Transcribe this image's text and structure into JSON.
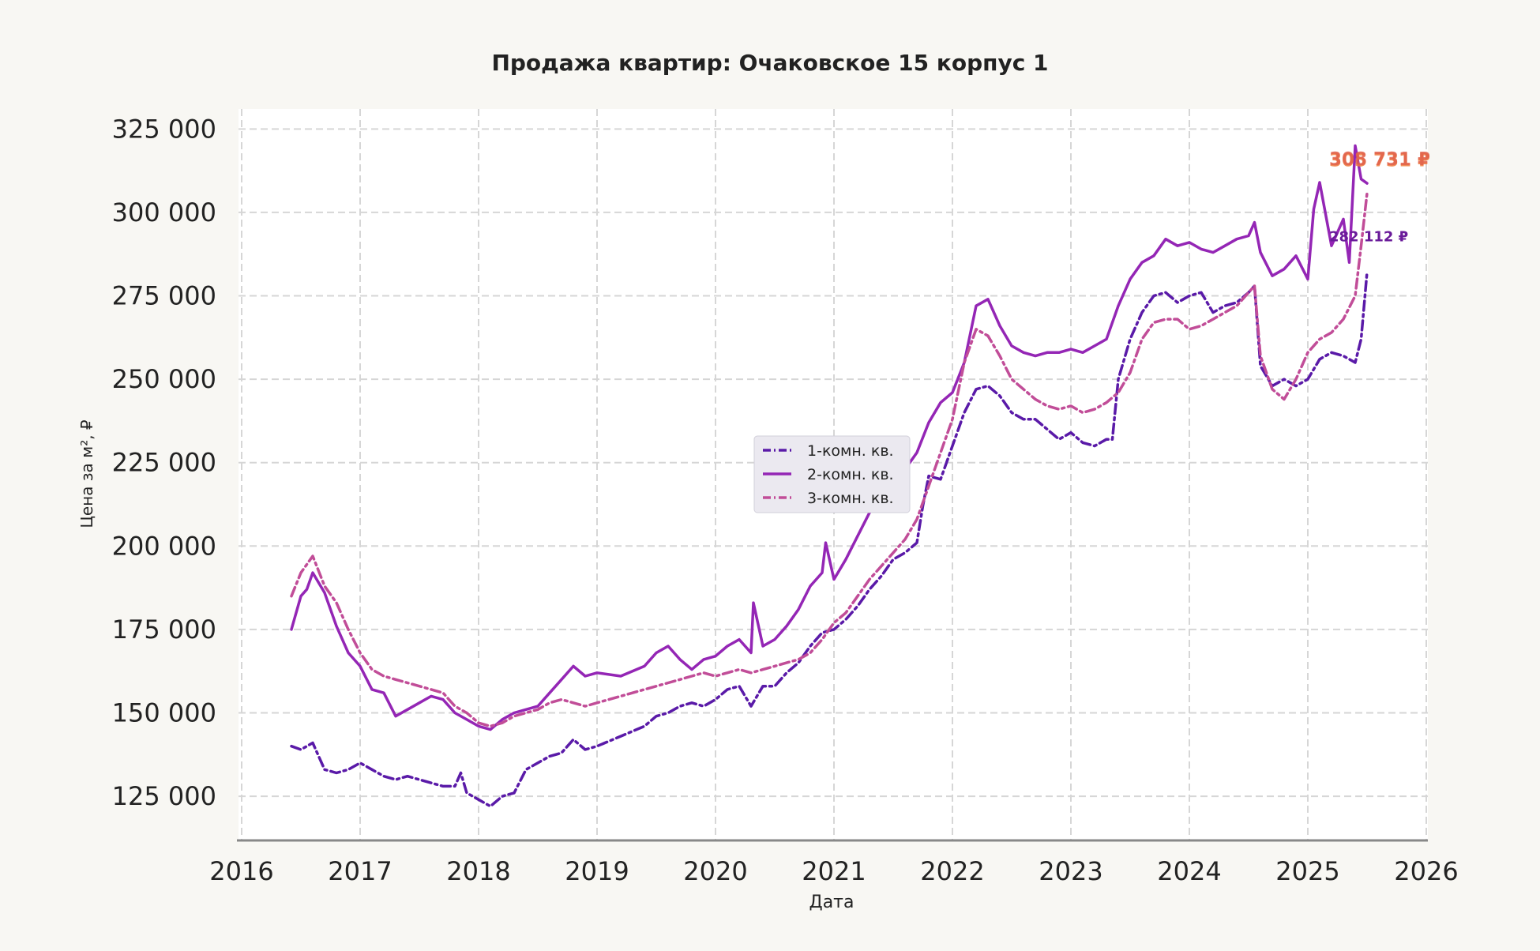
{
  "colors": {
    "background": "#f8f7f3",
    "plot_area": "#ffffff",
    "grid": "#d6d6d6",
    "axis": "#888888",
    "text": "#222222",
    "series_1": "#5a1aa8",
    "series_2": "#9426b5",
    "series_3": "#c14d98",
    "annotation_high": "#f07a3c"
  },
  "chart_data": {
    "type": "line",
    "title": "Продажа квартир: Очаковское 15 корпус 1",
    "xlabel": "Дата",
    "ylabel": "Цена за м², ₽",
    "xlim": [
      2016.0,
      2026.0
    ],
    "ylim": [
      112000,
      331000
    ],
    "x_ticks": [
      2016,
      2017,
      2018,
      2019,
      2020,
      2021,
      2022,
      2023,
      2024,
      2025,
      2026
    ],
    "y_ticks": [
      125000,
      150000,
      175000,
      200000,
      225000,
      250000,
      275000,
      300000,
      325000
    ],
    "x_tick_labels": [
      "2016",
      "2017",
      "2018",
      "2019",
      "2020",
      "2021",
      "2022",
      "2023",
      "2024",
      "2025",
      "2026"
    ],
    "y_tick_labels": [
      "125 000",
      "150 000",
      "175 000",
      "200 000",
      "225 000",
      "250 000",
      "275 000",
      "300 000",
      "325 000"
    ],
    "grid": true,
    "legend_position": "center",
    "series": [
      {
        "name": "1-комн. кв.",
        "style": "dashdot",
        "color": "#5a1aa8",
        "x": [
          2016.42,
          2016.5,
          2016.6,
          2016.7,
          2016.8,
          2016.9,
          2017.0,
          2017.1,
          2017.2,
          2017.3,
          2017.4,
          2017.5,
          2017.6,
          2017.7,
          2017.8,
          2017.85,
          2017.9,
          2018.0,
          2018.1,
          2018.2,
          2018.3,
          2018.4,
          2018.5,
          2018.6,
          2018.7,
          2018.8,
          2018.9,
          2019.0,
          2019.2,
          2019.4,
          2019.5,
          2019.6,
          2019.7,
          2019.8,
          2019.9,
          2020.0,
          2020.1,
          2020.2,
          2020.3,
          2020.4,
          2020.5,
          2020.6,
          2020.7,
          2020.8,
          2020.9,
          2021.0,
          2021.1,
          2021.2,
          2021.3,
          2021.4,
          2021.5,
          2021.6,
          2021.7,
          2021.75,
          2021.8,
          2021.9,
          2022.0,
          2022.1,
          2022.2,
          2022.3,
          2022.4,
          2022.5,
          2022.6,
          2022.7,
          2022.8,
          2022.9,
          2023.0,
          2023.1,
          2023.2,
          2023.3,
          2023.35,
          2023.4,
          2023.5,
          2023.6,
          2023.7,
          2023.8,
          2023.9,
          2024.0,
          2024.1,
          2024.2,
          2024.3,
          2024.4,
          2024.5,
          2024.55,
          2024.6,
          2024.7,
          2024.8,
          2024.9,
          2025.0,
          2025.1,
          2025.2,
          2025.3,
          2025.4,
          2025.45,
          2025.5
        ],
        "y": [
          140000,
          139000,
          141000,
          133000,
          132000,
          133000,
          135000,
          133000,
          131000,
          130000,
          131000,
          130000,
          129000,
          128000,
          128000,
          132000,
          126000,
          124000,
          122000,
          125000,
          126000,
          133000,
          135000,
          137000,
          138000,
          142000,
          139000,
          140000,
          143000,
          146000,
          149000,
          150000,
          152000,
          153000,
          152000,
          154000,
          157000,
          158000,
          152000,
          158000,
          158000,
          162000,
          165000,
          170000,
          174000,
          175000,
          178000,
          182000,
          187000,
          191000,
          196000,
          198000,
          201000,
          212000,
          221000,
          220000,
          230000,
          240000,
          247000,
          248000,
          245000,
          240000,
          238000,
          238000,
          235000,
          232000,
          234000,
          231000,
          230000,
          232000,
          232000,
          250000,
          262000,
          270000,
          275000,
          276000,
          273000,
          275000,
          276000,
          270000,
          272000,
          273000,
          276000,
          278000,
          254000,
          248000,
          250000,
          248000,
          250000,
          256000,
          258000,
          257000,
          255000,
          262000,
          282112
        ]
      },
      {
        "name": "2-комн. кв.",
        "style": "solid",
        "color": "#9426b5",
        "x": [
          2016.42,
          2016.5,
          2016.55,
          2016.6,
          2016.7,
          2016.8,
          2016.9,
          2017.0,
          2017.1,
          2017.2,
          2017.3,
          2017.4,
          2017.5,
          2017.6,
          2017.7,
          2017.8,
          2017.9,
          2018.0,
          2018.1,
          2018.2,
          2018.3,
          2018.4,
          2018.5,
          2018.6,
          2018.7,
          2018.8,
          2018.9,
          2019.0,
          2019.2,
          2019.4,
          2019.5,
          2019.6,
          2019.7,
          2019.8,
          2019.9,
          2020.0,
          2020.1,
          2020.2,
          2020.3,
          2020.32,
          2020.4,
          2020.5,
          2020.6,
          2020.7,
          2020.8,
          2020.9,
          2020.93,
          2021.0,
          2021.1,
          2021.2,
          2021.3,
          2021.4,
          2021.5,
          2021.6,
          2021.7,
          2021.8,
          2021.9,
          2022.0,
          2022.1,
          2022.2,
          2022.3,
          2022.4,
          2022.5,
          2022.6,
          2022.7,
          2022.8,
          2022.9,
          2023.0,
          2023.1,
          2023.2,
          2023.3,
          2023.4,
          2023.5,
          2023.6,
          2023.7,
          2023.8,
          2023.9,
          2024.0,
          2024.1,
          2024.2,
          2024.3,
          2024.4,
          2024.5,
          2024.55,
          2024.6,
          2024.7,
          2024.8,
          2024.9,
          2025.0,
          2025.05,
          2025.1,
          2025.2,
          2025.3,
          2025.35,
          2025.4,
          2025.45,
          2025.5
        ],
        "y": [
          175000,
          185000,
          187000,
          192000,
          186000,
          176000,
          168000,
          164000,
          157000,
          156000,
          149000,
          151000,
          153000,
          155000,
          154000,
          150000,
          148000,
          146000,
          145000,
          148000,
          150000,
          151000,
          152000,
          156000,
          160000,
          164000,
          161000,
          162000,
          161000,
          164000,
          168000,
          170000,
          166000,
          163000,
          166000,
          167000,
          170000,
          172000,
          168000,
          183000,
          170000,
          172000,
          176000,
          181000,
          188000,
          192000,
          201000,
          190000,
          196000,
          203000,
          210000,
          213000,
          218000,
          223000,
          228000,
          237000,
          243000,
          246000,
          255000,
          272000,
          274000,
          266000,
          260000,
          258000,
          257000,
          258000,
          258000,
          259000,
          258000,
          260000,
          262000,
          272000,
          280000,
          285000,
          287000,
          292000,
          290000,
          291000,
          289000,
          288000,
          290000,
          292000,
          293000,
          297000,
          288000,
          281000,
          283000,
          287000,
          280000,
          301000,
          309000,
          290000,
          298000,
          285000,
          320000,
          310000,
          308731
        ]
      },
      {
        "name": "3-комн. кв.",
        "style": "dashdot",
        "color": "#c14d98",
        "x": [
          2016.42,
          2016.5,
          2016.6,
          2016.7,
          2016.8,
          2016.9,
          2017.0,
          2017.1,
          2017.2,
          2017.3,
          2017.4,
          2017.5,
          2017.6,
          2017.7,
          2017.8,
          2017.9,
          2018.0,
          2018.1,
          2018.2,
          2018.3,
          2018.4,
          2018.5,
          2018.6,
          2018.7,
          2018.8,
          2018.9,
          2019.0,
          2019.2,
          2019.4,
          2019.5,
          2019.6,
          2019.7,
          2019.8,
          2019.9,
          2020.0,
          2020.1,
          2020.2,
          2020.3,
          2020.4,
          2020.5,
          2020.6,
          2020.7,
          2020.8,
          2020.9,
          2021.0,
          2021.1,
          2021.2,
          2021.3,
          2021.4,
          2021.5,
          2021.6,
          2021.7,
          2021.8,
          2021.9,
          2022.0,
          2022.1,
          2022.2,
          2022.3,
          2022.4,
          2022.5,
          2022.6,
          2022.7,
          2022.8,
          2022.9,
          2023.0,
          2023.1,
          2023.2,
          2023.3,
          2023.4,
          2023.5,
          2023.6,
          2023.7,
          2023.8,
          2023.9,
          2024.0,
          2024.1,
          2024.2,
          2024.3,
          2024.4,
          2024.5,
          2024.55,
          2024.6,
          2024.7,
          2024.8,
          2024.9,
          2025.0,
          2025.1,
          2025.2,
          2025.3,
          2025.4,
          2025.45,
          2025.5
        ],
        "y": [
          185000,
          192000,
          197000,
          188000,
          183000,
          175000,
          168000,
          163000,
          161000,
          160000,
          159000,
          158000,
          157000,
          156000,
          152000,
          150000,
          147000,
          146000,
          147000,
          149000,
          150000,
          151000,
          153000,
          154000,
          153000,
          152000,
          153000,
          155000,
          157000,
          158000,
          159000,
          160000,
          161000,
          162000,
          161000,
          162000,
          163000,
          162000,
          163000,
          164000,
          165000,
          166000,
          168000,
          172000,
          177000,
          180000,
          185000,
          190000,
          194000,
          198000,
          202000,
          208000,
          218000,
          228000,
          238000,
          255000,
          265000,
          263000,
          257000,
          250000,
          247000,
          244000,
          242000,
          241000,
          242000,
          240000,
          241000,
          243000,
          246000,
          252000,
          262000,
          267000,
          268000,
          268000,
          265000,
          266000,
          268000,
          270000,
          272000,
          276000,
          278000,
          257000,
          247000,
          244000,
          250000,
          258000,
          262000,
          264000,
          268000,
          275000,
          290000,
          305731
        ]
      }
    ],
    "annotations": [
      {
        "text": "305 731 ₽",
        "series": "3-комн. кв.",
        "color": "#f07a3c",
        "x": 2025.5,
        "y": 315500
      },
      {
        "text": "308 731 ₽",
        "series": "2-комн. кв.",
        "color": "#e0604a",
        "x": 2025.5,
        "y": 315800
      },
      {
        "text": "282 112 ₽",
        "series": "1-комн. кв.",
        "color": "#6a1b9a",
        "x": 2025.5,
        "y": 293000
      }
    ]
  }
}
